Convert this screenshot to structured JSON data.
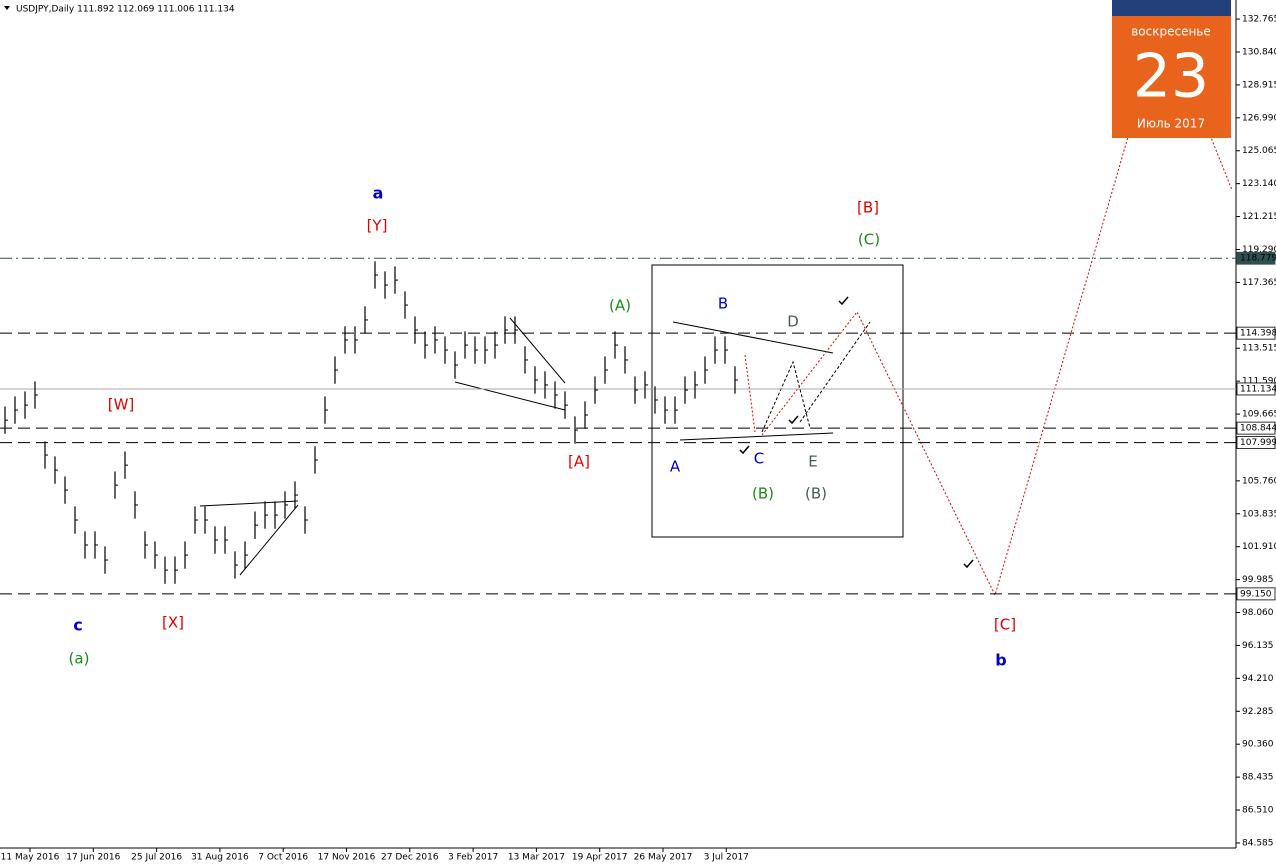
{
  "chart_data": {
    "type": "hilo",
    "title": "USDJPY,Daily  111.892 112.069 111.006 111.134",
    "color": "#000000",
    "high": [
      110.11,
      110.7,
      110.99,
      111.58,
      108.07,
      107.19,
      106.02,
      104.27,
      102.81,
      102.81,
      101.93,
      106.31,
      107.48,
      105.15,
      102.81,
      102.22,
      101.34,
      101.34,
      102.22,
      104.27,
      104.27,
      103.1,
      103.1,
      101.64,
      102.22,
      103.97,
      104.56,
      104.56,
      105.15,
      105.73,
      104.27,
      107.78,
      110.7,
      113.04,
      114.8,
      114.8,
      115.97,
      118.6,
      118.01,
      118.3,
      116.84,
      115.38,
      114.5,
      114.8,
      114.21,
      113.33,
      114.5,
      114.21,
      114.21,
      114.5,
      115.38,
      115.38,
      113.63,
      112.46,
      112.17,
      111.58,
      110.99,
      109.53,
      110.41,
      111.87,
      113.04,
      114.5,
      113.63,
      111.87,
      112.17,
      111.29,
      110.7,
      110.7,
      111.87,
      112.17,
      113.04,
      114.21,
      114.21,
      112.46
    ],
    "low": [
      108.51,
      109.1,
      109.39,
      109.98,
      106.47,
      105.59,
      104.42,
      102.67,
      101.21,
      101.21,
      100.33,
      104.71,
      105.88,
      103.55,
      101.21,
      100.62,
      99.74,
      99.74,
      100.62,
      102.67,
      102.67,
      101.5,
      101.5,
      100.04,
      100.62,
      102.37,
      102.96,
      102.96,
      103.55,
      104.13,
      102.67,
      106.18,
      109.1,
      111.44,
      113.2,
      113.2,
      114.37,
      117.0,
      116.41,
      116.7,
      115.24,
      113.78,
      112.9,
      113.2,
      112.61,
      111.73,
      112.9,
      112.61,
      112.61,
      112.9,
      113.78,
      113.78,
      112.03,
      110.86,
      110.57,
      109.98,
      109.39,
      107.93,
      108.81,
      110.27,
      111.44,
      112.9,
      112.03,
      110.27,
      110.57,
      109.69,
      109.1,
      109.1,
      110.27,
      110.57,
      111.44,
      112.61,
      112.61,
      110.86
    ],
    "xtick_labels": [
      "11 May 2016",
      "17 Jun 2016",
      "25 Jul 2016",
      "31 Aug 2016",
      "7 Oct 2016",
      "17 Nov 2016",
      "27 Dec 2016",
      "3 Feb 2017",
      "13 Mar 2017",
      "19 Apr 2017",
      "26 May 2017",
      "3 Jul 2017"
    ],
    "ylim": [
      84.29,
      133.88
    ],
    "yticks": [
      {
        "value": 132.765,
        "label": "132.765"
      },
      {
        "value": 130.84,
        "label": "130.840"
      },
      {
        "value": 128.915,
        "label": "128.915"
      },
      {
        "value": 126.99,
        "label": "126.990"
      },
      {
        "value": 125.065,
        "label": "125.065"
      },
      {
        "value": 123.14,
        "label": "123.140"
      },
      {
        "value": 121.215,
        "label": "121.215"
      },
      {
        "value": 119.29,
        "label": "119.290"
      },
      {
        "value": 117.365,
        "label": "117.365"
      },
      {
        "value": 113.515,
        "label": "113.515"
      },
      {
        "value": 111.59,
        "label": "111.590"
      },
      {
        "value": 109.665,
        "label": "109.665"
      },
      {
        "value": 105.76,
        "label": "105.760"
      },
      {
        "value": 103.835,
        "label": "103.835"
      },
      {
        "value": 101.91,
        "label": "101.910"
      },
      {
        "value": 99.985,
        "label": "99.985"
      },
      {
        "value": 98.06,
        "label": "98.060"
      },
      {
        "value": 96.135,
        "label": "96.135"
      },
      {
        "value": 94.21,
        "label": "94.210"
      },
      {
        "value": 92.285,
        "label": "92.285"
      },
      {
        "value": 90.36,
        "label": "90.360"
      },
      {
        "value": 88.435,
        "label": "88.435"
      },
      {
        "value": 86.51,
        "label": "86.510"
      },
      {
        "value": 84.585,
        "label": "84.585"
      }
    ],
    "levels": [
      {
        "value": 118.779,
        "label": "118.779",
        "color": "#2f5050"
      },
      {
        "value": 114.398,
        "label": "114.398",
        "color": "#000000"
      },
      {
        "value": 111.134,
        "label": "111.134",
        "color": "#aaaaaa"
      },
      {
        "value": 108.844,
        "label": "108.844",
        "color": "#000000"
      },
      {
        "value": 107.999,
        "label": "107.999",
        "color": "#000000"
      },
      {
        "value": 99.15,
        "label": "99.150",
        "color": "#000000"
      }
    ],
    "annotations": [
      {
        "text": "a",
        "color": "#0000cc"
      },
      {
        "text": "[Y]",
        "color": "#e00000"
      },
      {
        "text": "[W]",
        "color": "#e00000"
      },
      {
        "text": "c",
        "color": "#0000cc"
      },
      {
        "text": "(a)",
        "color": "#1a8a1a"
      },
      {
        "text": "[X]",
        "color": "#e00000"
      },
      {
        "text": "[A]",
        "color": "#e00000"
      },
      {
        "text": "(A)",
        "color": "#1a8a1a"
      },
      {
        "text": "B",
        "color": "#0000cc"
      },
      {
        "text": "D",
        "color": "#4a5a5a"
      },
      {
        "text": "A",
        "color": "#0000cc"
      },
      {
        "text": "C",
        "color": "#0000cc"
      },
      {
        "text": "E",
        "color": "#4a5a5a"
      },
      {
        "text": "(B)",
        "color": "#1a8a1a"
      },
      {
        "text": "(B)",
        "color": "#4a5a5a"
      },
      {
        "text": "[B]",
        "color": "#e00000"
      },
      {
        "text": "(C)",
        "color": "#1a8a1a"
      },
      {
        "text": "[C]",
        "color": "#e00000"
      },
      {
        "text": "b",
        "color": "#0000cc"
      }
    ],
    "calendar": {
      "weekday": "воскресенье",
      "day": "23",
      "month": "Июль 2017"
    }
  }
}
